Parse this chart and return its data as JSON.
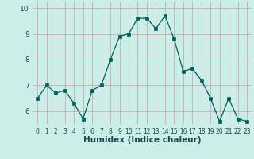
{
  "x": [
    0,
    1,
    2,
    3,
    4,
    5,
    6,
    7,
    8,
    9,
    10,
    11,
    12,
    13,
    14,
    15,
    16,
    17,
    18,
    19,
    20,
    21,
    22,
    23
  ],
  "y": [
    6.5,
    7.0,
    6.7,
    6.8,
    6.3,
    5.7,
    6.8,
    7.0,
    8.0,
    8.9,
    9.0,
    9.6,
    9.6,
    9.2,
    9.7,
    8.8,
    7.55,
    7.65,
    7.2,
    6.5,
    5.6,
    6.5,
    5.7,
    5.6
  ],
  "xlabel": "Humidex (Indice chaleur)",
  "ylim": [
    5.5,
    10.25
  ],
  "xlim": [
    -0.5,
    23.5
  ],
  "line_color": "#005f5f",
  "marker": "s",
  "marker_size": 2.2,
  "bg_color": "#cceee8",
  "grid_color_v": "#c8aaaa",
  "grid_color_h": "#c8aaaa",
  "tick_color": "#1a4a4a",
  "xlabel_fontsize": 7.5,
  "tick_fontsize_x": 5.5,
  "tick_fontsize_y": 6.5,
  "yticks": [
    6,
    7,
    8,
    9,
    10
  ],
  "xticks": [
    0,
    1,
    2,
    3,
    4,
    5,
    6,
    7,
    8,
    9,
    10,
    11,
    12,
    13,
    14,
    15,
    16,
    17,
    18,
    19,
    20,
    21,
    22,
    23
  ]
}
